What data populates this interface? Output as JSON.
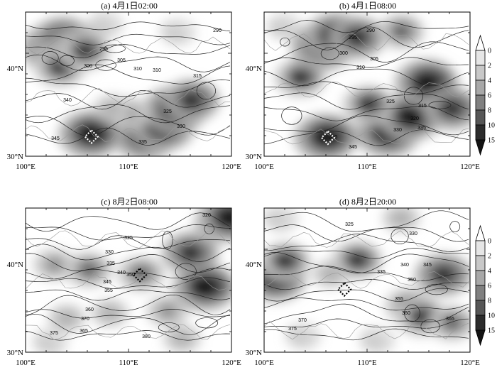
{
  "chart_data": [
    {
      "type": "heatmap",
      "title": "(a) 4月1日02:00",
      "lon_range": [
        100,
        120
      ],
      "lat_range": [
        30,
        44
      ],
      "xticks": [
        "100°E",
        "110°E",
        "120°E"
      ],
      "yticks": [
        "30°N",
        "40°N"
      ],
      "shading": [
        {
          "lon": 102.6,
          "lat": 40.5,
          "level": 15
        },
        {
          "lon": 103.6,
          "lat": 41.2,
          "level": 15
        },
        {
          "lon": 104.6,
          "lat": 40.4,
          "level": 12
        },
        {
          "lon": 103.3,
          "lat": 38.6,
          "level": 10
        },
        {
          "lon": 105.7,
          "lat": 40.2,
          "level": 10
        },
        {
          "lon": 106.3,
          "lat": 32.1,
          "level": 15
        },
        {
          "lon": 111.6,
          "lat": 31.9,
          "level": 15
        },
        {
          "lon": 113.3,
          "lat": 32.8,
          "level": 15
        },
        {
          "lon": 114.5,
          "lat": 34.5,
          "level": 15
        },
        {
          "lon": 116.1,
          "lat": 35.4,
          "level": 12
        },
        {
          "lon": 110.0,
          "lat": 34.2,
          "level": 6
        },
        {
          "lon": 108.4,
          "lat": 34.6,
          "level": 4
        },
        {
          "lon": 107.8,
          "lat": 42.8,
          "level": 3
        },
        {
          "lon": 114.8,
          "lat": 42.1,
          "level": 3
        }
      ],
      "contour_labels": [
        "290",
        "295",
        "300",
        "305",
        "310",
        "310",
        "315",
        "325",
        "330",
        "335",
        "340",
        "345"
      ],
      "marked_point": {
        "lon": 106.4,
        "lat": 31.9
      }
    },
    {
      "type": "heatmap",
      "title": "(b) 4月1日08:00",
      "lon_range": [
        100,
        120
      ],
      "lat_range": [
        30,
        44
      ],
      "xticks": [
        "100°E",
        "110°E",
        "120°E"
      ],
      "yticks": [
        "30°N",
        "40°N"
      ],
      "shading": [
        {
          "lon": 105.7,
          "lat": 40.6,
          "level": 15
        },
        {
          "lon": 107.0,
          "lat": 41.6,
          "level": 15
        },
        {
          "lon": 109.0,
          "lat": 41.5,
          "level": 12
        },
        {
          "lon": 103.5,
          "lat": 37.6,
          "level": 10
        },
        {
          "lon": 106.0,
          "lat": 31.8,
          "level": 15
        },
        {
          "lon": 112.0,
          "lat": 32.2,
          "level": 15
        },
        {
          "lon": 114.2,
          "lat": 33.8,
          "level": 15
        },
        {
          "lon": 115.8,
          "lat": 37.1,
          "level": 15
        },
        {
          "lon": 118.2,
          "lat": 34.6,
          "level": 12
        },
        {
          "lon": 110.1,
          "lat": 35.0,
          "level": 10
        },
        {
          "lon": 113.3,
          "lat": 42.1,
          "level": 8
        },
        {
          "lon": 102.0,
          "lat": 42.6,
          "level": 3
        }
      ],
      "contour_labels": [
        "290",
        "295",
        "300",
        "305",
        "310",
        "315",
        "320",
        "325",
        "330",
        "335",
        "340",
        "345"
      ],
      "marked_point": {
        "lon": 106.2,
        "lat": 31.8
      }
    },
    {
      "type": "heatmap",
      "title": "(c) 8月2日08:00",
      "lon_range": [
        100,
        120
      ],
      "lat_range": [
        30,
        44
      ],
      "xticks": [
        "100°E",
        "110°E",
        "120°E"
      ],
      "yticks": [
        "30°N",
        "40°N"
      ],
      "shading": [
        {
          "lon": 116.0,
          "lat": 39.6,
          "level": 12
        },
        {
          "lon": 117.4,
          "lat": 36.3,
          "level": 15
        },
        {
          "lon": 118.8,
          "lat": 42.4,
          "level": 10
        },
        {
          "lon": 119.8,
          "lat": 43.0,
          "level": 15
        },
        {
          "lon": 111.2,
          "lat": 37.6,
          "level": 8
        },
        {
          "lon": 106.1,
          "lat": 38.0,
          "level": 8
        },
        {
          "lon": 102.8,
          "lat": 38.5,
          "level": 6
        },
        {
          "lon": 113.8,
          "lat": 34.0,
          "level": 6
        },
        {
          "lon": 104.0,
          "lat": 33.3,
          "level": 4
        },
        {
          "lon": 108.2,
          "lat": 33.8,
          "level": 4
        },
        {
          "lon": 102.4,
          "lat": 31.0,
          "level": 3
        },
        {
          "lon": 115.2,
          "lat": 31.3,
          "level": 4
        }
      ],
      "contour_labels": [
        "320",
        "325",
        "330",
        "335",
        "340",
        "345",
        "350",
        "355",
        "360",
        "365",
        "370",
        "375",
        "380"
      ],
      "marked_point": {
        "lon": 111.1,
        "lat": 37.5
      }
    },
    {
      "type": "heatmap",
      "title": "(d) 8月2日20:00",
      "lon_range": [
        100,
        120
      ],
      "lat_range": [
        30,
        44
      ],
      "xticks": [
        "100°E",
        "110°E",
        "120°E"
      ],
      "yticks": [
        "30°N",
        "40°N"
      ],
      "shading": [
        {
          "lon": 101.0,
          "lat": 37.2,
          "level": 15
        },
        {
          "lon": 102.0,
          "lat": 38.8,
          "level": 10
        },
        {
          "lon": 109.0,
          "lat": 38.9,
          "level": 10
        },
        {
          "lon": 117.4,
          "lat": 37.5,
          "level": 12
        },
        {
          "lon": 114.0,
          "lat": 34.5,
          "level": 8
        },
        {
          "lon": 115.3,
          "lat": 33.4,
          "level": 10
        },
        {
          "lon": 118.2,
          "lat": 32.8,
          "level": 8
        },
        {
          "lon": 113.3,
          "lat": 43.0,
          "level": 4
        },
        {
          "lon": 101.6,
          "lat": 43.0,
          "level": 3
        },
        {
          "lon": 106.5,
          "lat": 37.6,
          "level": 4
        },
        {
          "lon": 103.8,
          "lat": 31.6,
          "level": 3
        },
        {
          "lon": 111.0,
          "lat": 31.2,
          "level": 3
        }
      ],
      "contour_labels": [
        "325",
        "330",
        "335",
        "340",
        "345",
        "350",
        "355",
        "360",
        "365",
        "370",
        "375"
      ],
      "marked_point": {
        "lon": 107.8,
        "lat": 36.1
      }
    }
  ],
  "colorbar": {
    "levels": [
      "0",
      "2",
      "4",
      "6",
      "8",
      "10",
      "15"
    ],
    "colors": [
      "#ffffff",
      "#e6e6e6",
      "#c8c8c8",
      "#a8a8a8",
      "#808080",
      "#565656",
      "#2c2c2c",
      "#141414"
    ]
  }
}
